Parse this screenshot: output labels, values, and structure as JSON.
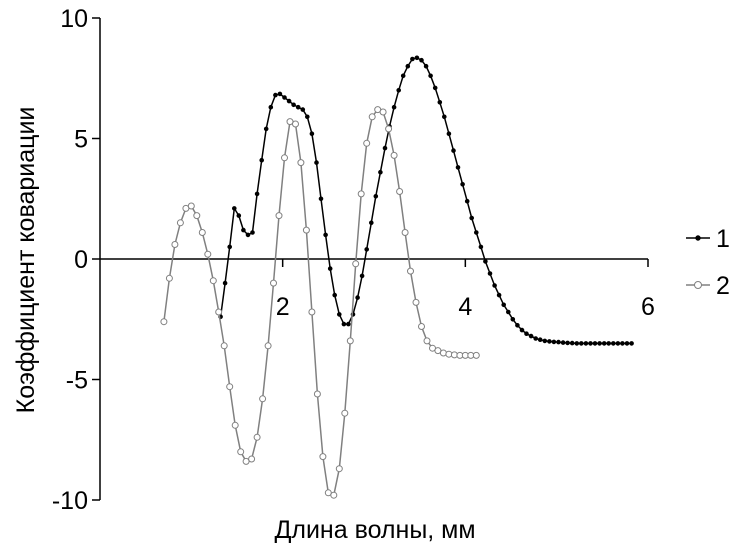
{
  "chart_data": {
    "type": "line",
    "xlabel": "Длина волны, мм",
    "ylabel": "Коэффициент ковариации",
    "xlim": [
      0,
      6
    ],
    "ylim": [
      -10,
      10
    ],
    "x_ticks": [
      2,
      4,
      6
    ],
    "x_tick_labels": [
      "2",
      "4",
      "6"
    ],
    "y_ticks": [
      10,
      5,
      0,
      -5,
      -10
    ],
    "y_tick_labels": [
      "10",
      "5",
      "0",
      "-5",
      "-10"
    ],
    "grid": false,
    "legend_position": "right",
    "series": [
      {
        "name": "1",
        "color": "#000000",
        "marker": "filled-circle",
        "x": [
          1.32,
          1.37,
          1.42,
          1.47,
          1.52,
          1.57,
          1.62,
          1.67,
          1.72,
          1.77,
          1.82,
          1.87,
          1.92,
          1.97,
          2.02,
          2.07,
          2.12,
          2.17,
          2.22,
          2.27,
          2.32,
          2.37,
          2.42,
          2.47,
          2.52,
          2.57,
          2.62,
          2.67,
          2.72,
          2.77,
          2.82,
          2.87,
          2.92,
          2.97,
          3.02,
          3.07,
          3.12,
          3.17,
          3.22,
          3.27,
          3.32,
          3.37,
          3.42,
          3.47,
          3.52,
          3.57,
          3.62,
          3.67,
          3.72,
          3.77,
          3.82,
          3.87,
          3.92,
          3.97,
          4.02,
          4.07,
          4.12,
          4.17,
          4.22,
          4.27,
          4.32,
          4.37,
          4.42,
          4.47,
          4.52,
          4.57,
          4.62,
          4.67,
          4.72,
          4.77,
          4.82,
          4.87,
          4.92,
          4.97,
          5.02,
          5.07,
          5.12,
          5.17,
          5.22,
          5.27,
          5.32,
          5.37,
          5.42,
          5.47,
          5.52,
          5.57,
          5.62,
          5.67,
          5.72,
          5.77,
          5.82
        ],
        "y": [
          -2.4,
          -1.0,
          0.5,
          2.1,
          1.8,
          1.2,
          1.0,
          1.1,
          2.7,
          4.1,
          5.4,
          6.3,
          6.8,
          6.85,
          6.7,
          6.55,
          6.4,
          6.3,
          6.2,
          5.9,
          5.2,
          4.0,
          2.5,
          1.0,
          -0.4,
          -1.5,
          -2.3,
          -2.7,
          -2.7,
          -2.3,
          -1.6,
          -0.7,
          0.4,
          1.5,
          2.6,
          3.6,
          4.6,
          5.5,
          6.3,
          7.0,
          7.6,
          8.0,
          8.3,
          8.35,
          8.25,
          8.0,
          7.6,
          7.1,
          6.5,
          5.9,
          5.2,
          4.5,
          3.8,
          3.1,
          2.4,
          1.7,
          1.1,
          0.5,
          -0.1,
          -0.6,
          -1.1,
          -1.5,
          -1.9,
          -2.2,
          -2.5,
          -2.75,
          -2.95,
          -3.1,
          -3.2,
          -3.3,
          -3.35,
          -3.4,
          -3.42,
          -3.44,
          -3.45,
          -3.47,
          -3.48,
          -3.49,
          -3.5,
          -3.5,
          -3.5,
          -3.5,
          -3.5,
          -3.5,
          -3.5,
          -3.5,
          -3.5,
          -3.5,
          -3.5,
          -3.5,
          -3.5
        ]
      },
      {
        "name": "2",
        "color": "#808080",
        "marker": "open-circle",
        "x": [
          0.7,
          0.76,
          0.82,
          0.88,
          0.94,
          1.0,
          1.06,
          1.12,
          1.18,
          1.24,
          1.3,
          1.36,
          1.42,
          1.48,
          1.54,
          1.6,
          1.66,
          1.72,
          1.78,
          1.84,
          1.9,
          1.96,
          2.02,
          2.08,
          2.14,
          2.2,
          2.26,
          2.32,
          2.38,
          2.44,
          2.5,
          2.56,
          2.62,
          2.68,
          2.74,
          2.8,
          2.86,
          2.92,
          2.98,
          3.04,
          3.1,
          3.16,
          3.22,
          3.28,
          3.34,
          3.4,
          3.46,
          3.52,
          3.58,
          3.64,
          3.7,
          3.76,
          3.82,
          3.88,
          3.94,
          4.0,
          4.06,
          4.12
        ],
        "y": [
          -2.6,
          -0.8,
          0.6,
          1.5,
          2.1,
          2.2,
          1.8,
          1.1,
          0.2,
          -0.9,
          -2.2,
          -3.6,
          -5.3,
          -6.9,
          -8.0,
          -8.4,
          -8.3,
          -7.4,
          -5.8,
          -3.6,
          -1.0,
          1.8,
          4.2,
          5.7,
          5.6,
          4.0,
          1.2,
          -2.2,
          -5.6,
          -8.2,
          -9.7,
          -9.8,
          -8.7,
          -6.4,
          -3.4,
          -0.2,
          2.7,
          4.8,
          5.9,
          6.2,
          6.1,
          5.4,
          4.3,
          2.8,
          1.1,
          -0.5,
          -1.8,
          -2.8,
          -3.4,
          -3.7,
          -3.8,
          -3.9,
          -3.95,
          -3.98,
          -4.0,
          -4.0,
          -4.0,
          -4.0
        ]
      }
    ]
  }
}
